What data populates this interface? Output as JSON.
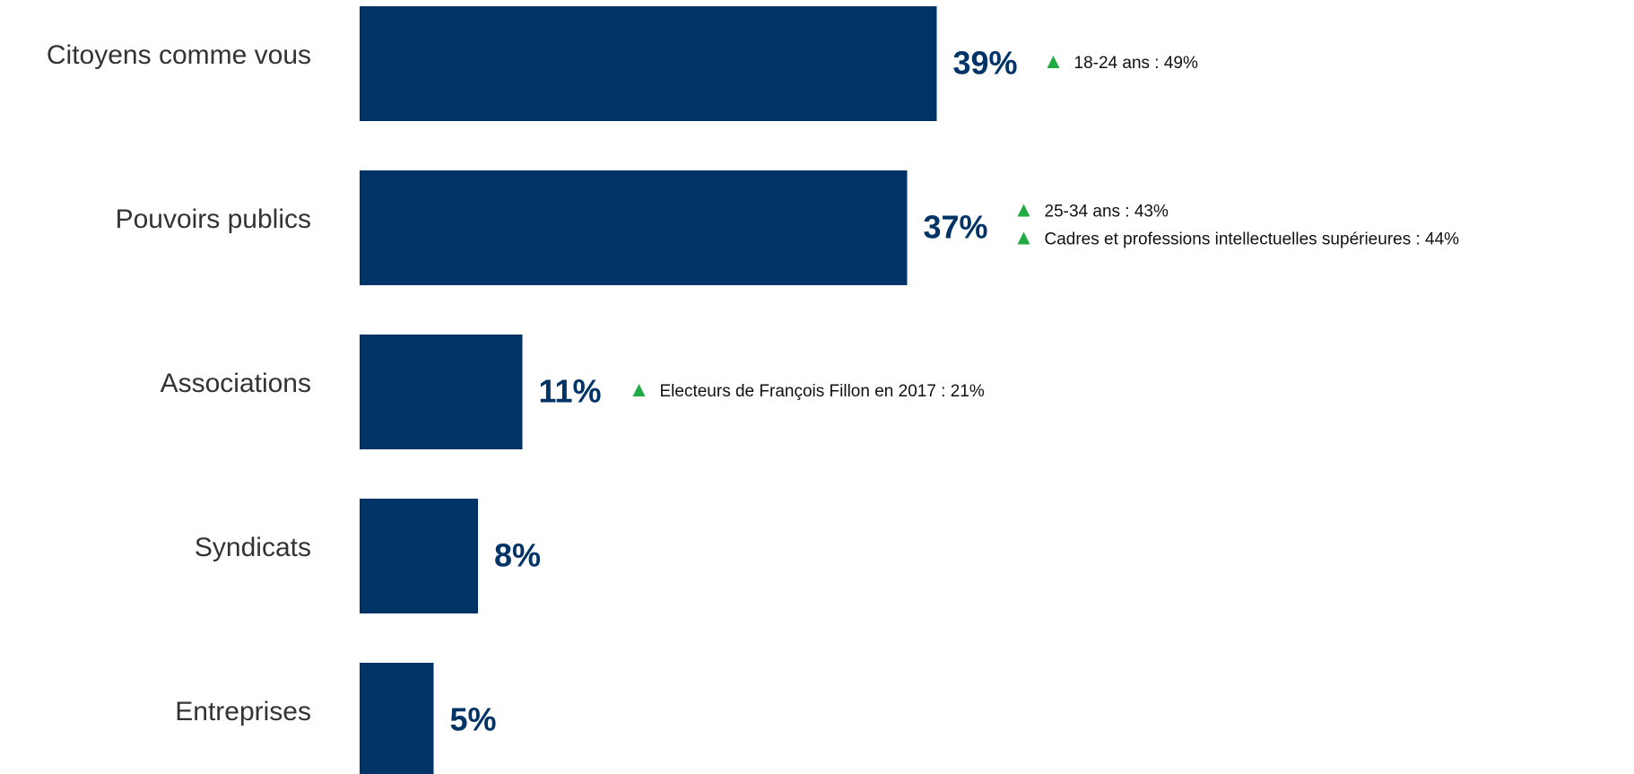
{
  "colors": {
    "bar": "#003366",
    "value_label": "#003366",
    "category_label": "#333333",
    "up_arrow": "#22aa44",
    "note_text": "#111111",
    "background": "#ffffff"
  },
  "chart_data": {
    "type": "bar",
    "orientation": "horizontal",
    "title": "",
    "xlabel": "",
    "ylabel": "",
    "grid": false,
    "legend": "none",
    "xlim": [
      0,
      100
    ],
    "value_suffix": "%",
    "categories": [
      "Citoyens comme vous",
      "Pouvoirs publics",
      "Associations",
      "Syndicats",
      "Entreprises"
    ],
    "values": [
      39,
      37,
      11,
      8,
      5
    ],
    "value_labels": [
      "39%",
      "37%",
      "11%",
      "8%",
      "5%"
    ],
    "annotations": [
      {
        "category": "Citoyens comme vous",
        "icon": "up-triangle-icon",
        "notes": [
          "18-24 ans : 49%"
        ]
      },
      {
        "category": "Pouvoirs publics",
        "icon": "up-triangle-icon",
        "notes": [
          "25-34 ans : 43%",
          "Cadres et professions intellectuelles supérieures : 44%"
        ]
      },
      {
        "category": "Associations",
        "icon": "up-triangle-icon",
        "notes": [
          "Electeurs de François Fillon en 2017 : 21%"
        ]
      },
      {
        "category": "Syndicats",
        "icon": "up-triangle-icon",
        "notes": []
      },
      {
        "category": "Entreprises",
        "icon": "up-triangle-icon",
        "notes": []
      }
    ]
  }
}
